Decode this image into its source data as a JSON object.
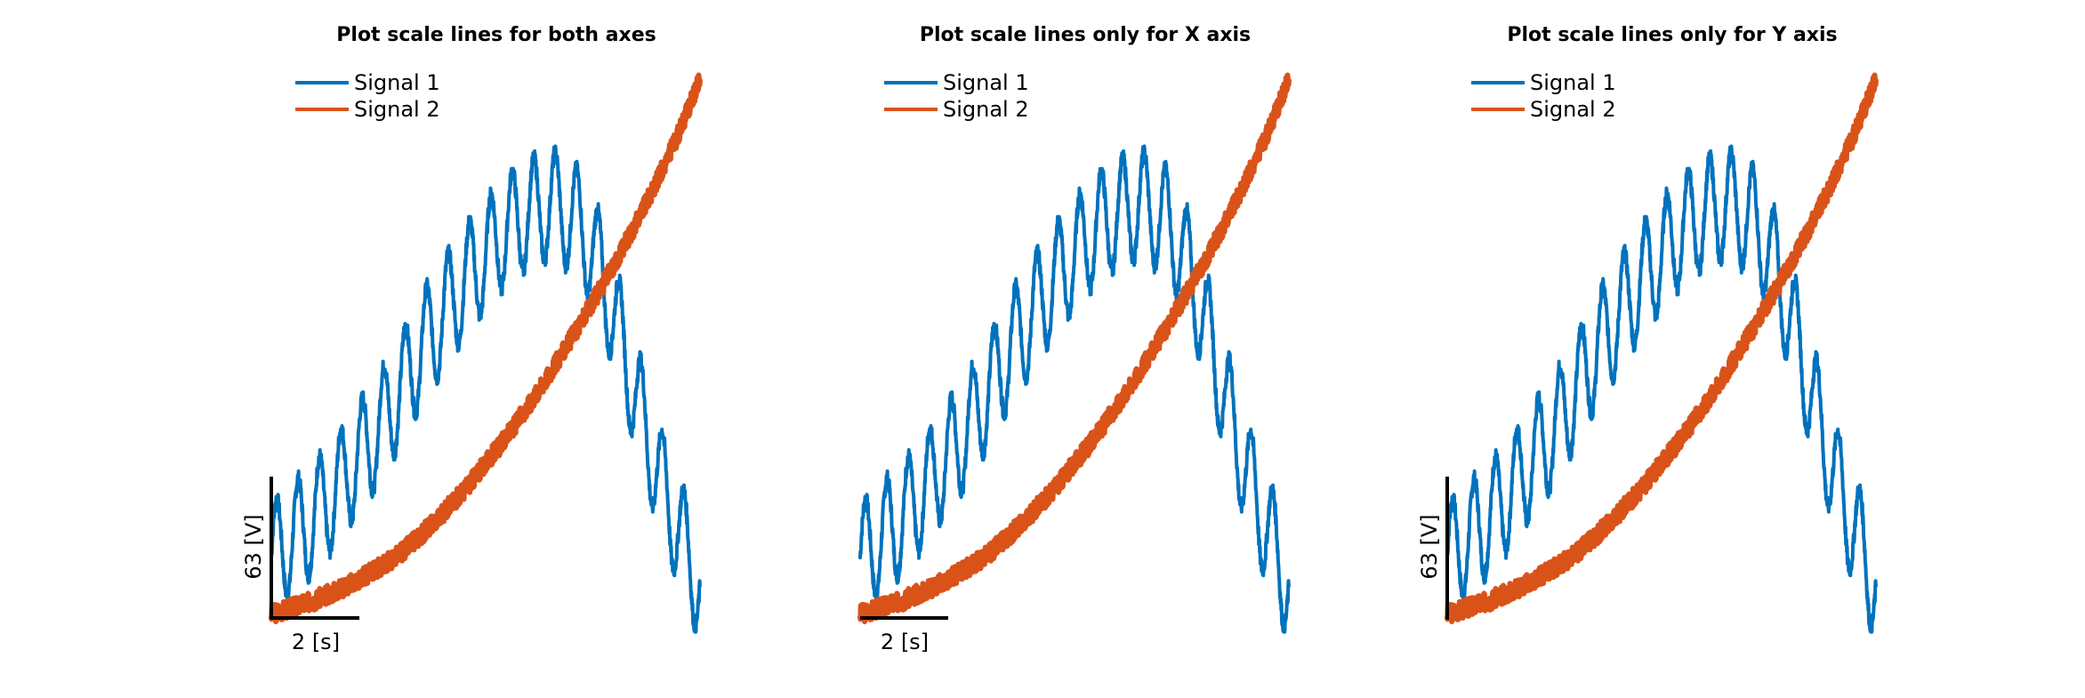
{
  "colors": {
    "signal1": "#0072BD",
    "signal2": "#D95319",
    "scale_line": "#000000"
  },
  "chart_data": [
    {
      "type": "line",
      "title": "Plot scale lines for both axes",
      "scale_bars": {
        "x": true,
        "y": true
      },
      "scale_labels": {
        "x": "2 [s]",
        "y": "63 [V]"
      },
      "legend": "top-left",
      "grid": false,
      "xlim": [
        0,
        10.5
      ],
      "ylim": [
        0,
        400
      ],
      "series": [
        {
          "name": "Signal 1",
          "color": "#0072BD",
          "x": [
            0,
            0.5,
            1,
            1.5,
            2,
            2.5,
            3,
            3.5,
            4,
            4.5,
            5,
            5.5,
            6,
            6.5,
            7,
            7.5,
            8,
            8.5,
            9,
            9.5,
            10
          ],
          "y": [
            45,
            60,
            75,
            95,
            118,
            140,
            170,
            200,
            225,
            250,
            270,
            290,
            300,
            308,
            300,
            275,
            225,
            165,
            110,
            65,
            25
          ]
        },
        {
          "name": "Signal 2",
          "color": "#D95319",
          "x": [
            0,
            0.5,
            1,
            1.5,
            2,
            2.5,
            3,
            3.5,
            4,
            4.5,
            5,
            5.5,
            6,
            6.5,
            7,
            7.5,
            8,
            8.5,
            9,
            9.5,
            10
          ],
          "y": [
            3,
            8,
            13,
            20,
            28,
            37,
            48,
            62,
            78,
            95,
            115,
            135,
            158,
            182,
            208,
            235,
            263,
            293,
            325,
            360,
            400
          ]
        }
      ]
    },
    {
      "type": "line",
      "title": "Plot scale lines only for X axis",
      "scale_bars": {
        "x": true,
        "y": false
      },
      "scale_labels": {
        "x": "2 [s]"
      },
      "legend": "top-left",
      "grid": false,
      "xlim": [
        0,
        10.5
      ],
      "ylim": [
        0,
        400
      ],
      "series": [
        {
          "name": "Signal 1",
          "color": "#0072BD",
          "x": [
            0,
            0.5,
            1,
            1.5,
            2,
            2.5,
            3,
            3.5,
            4,
            4.5,
            5,
            5.5,
            6,
            6.5,
            7,
            7.5,
            8,
            8.5,
            9,
            9.5,
            10
          ],
          "y": [
            45,
            60,
            75,
            95,
            118,
            140,
            170,
            200,
            225,
            250,
            270,
            290,
            300,
            308,
            300,
            275,
            225,
            165,
            110,
            65,
            25
          ]
        },
        {
          "name": "Signal 2",
          "color": "#D95319",
          "x": [
            0,
            0.5,
            1,
            1.5,
            2,
            2.5,
            3,
            3.5,
            4,
            4.5,
            5,
            5.5,
            6,
            6.5,
            7,
            7.5,
            8,
            8.5,
            9,
            9.5,
            10
          ],
          "y": [
            3,
            8,
            13,
            20,
            28,
            37,
            48,
            62,
            78,
            95,
            115,
            135,
            158,
            182,
            208,
            235,
            263,
            293,
            325,
            360,
            400
          ]
        }
      ]
    },
    {
      "type": "line",
      "title": "Plot scale lines only for Y axis",
      "scale_bars": {
        "x": false,
        "y": true
      },
      "scale_labels": {
        "y": "63 [V]"
      },
      "legend": "top-left",
      "grid": false,
      "xlim": [
        0,
        10.5
      ],
      "ylim": [
        0,
        400
      ],
      "series": [
        {
          "name": "Signal 1",
          "color": "#0072BD",
          "x": [
            0,
            0.5,
            1,
            1.5,
            2,
            2.5,
            3,
            3.5,
            4,
            4.5,
            5,
            5.5,
            6,
            6.5,
            7,
            7.5,
            8,
            8.5,
            9,
            9.5,
            10
          ],
          "y": [
            45,
            60,
            75,
            95,
            118,
            140,
            170,
            200,
            225,
            250,
            270,
            290,
            300,
            308,
            300,
            275,
            225,
            165,
            110,
            65,
            25
          ]
        },
        {
          "name": "Signal 2",
          "color": "#D95319",
          "x": [
            0,
            0.5,
            1,
            1.5,
            2,
            2.5,
            3,
            3.5,
            4,
            4.5,
            5,
            5.5,
            6,
            6.5,
            7,
            7.5,
            8,
            8.5,
            9,
            9.5,
            10
          ],
          "y": [
            3,
            8,
            13,
            20,
            28,
            37,
            48,
            62,
            78,
            95,
            115,
            135,
            158,
            182,
            208,
            235,
            263,
            293,
            325,
            360,
            400
          ]
        }
      ]
    }
  ]
}
